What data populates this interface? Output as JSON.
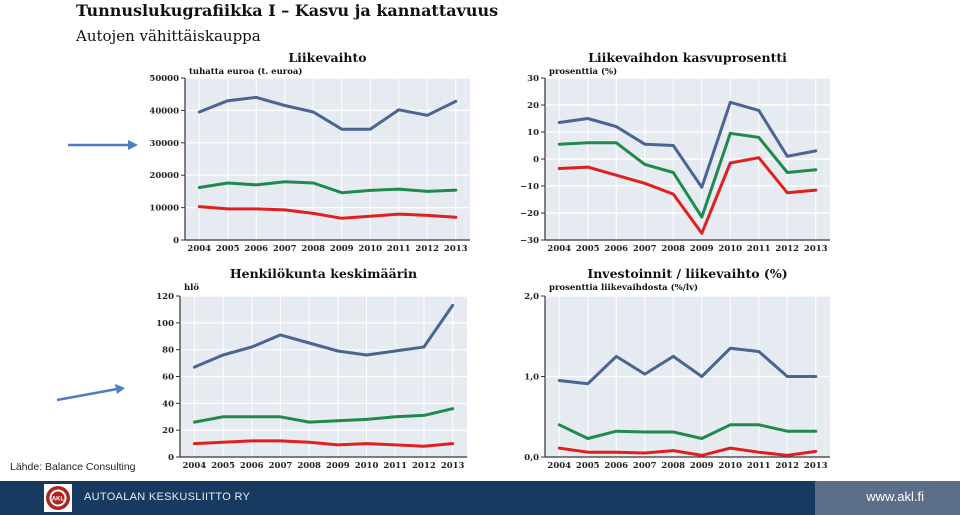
{
  "slide": {
    "title": "Tunnuslukugrafiikka I – Kasvu ja kannattavuus",
    "subtitle": "Autojen vähittäiskauppa",
    "source": "Lähde: Balance Consulting"
  },
  "footer": {
    "org_name": "AUTOALAN KESKUSLIITTO RY",
    "logo_text": "AKL",
    "website": "www.akl.fi"
  },
  "colors": {
    "blue": "#4a6591",
    "green": "#1f8a4c",
    "red": "#e0201f",
    "plot_bg": "#e6ebf1",
    "grid": "#ffffff",
    "arrow": "#4f7cc4"
  },
  "chart_data": [
    {
      "type": "line",
      "title": "Liikevaihto",
      "unit_label": "tuhatta euroa (t. euroa)",
      "x": [
        "2004",
        "2005",
        "2006",
        "2007",
        "2008",
        "2009",
        "2010",
        "2011",
        "2012",
        "2013"
      ],
      "ylim": [
        0,
        50000
      ],
      "yticks": [
        0,
        10000,
        20000,
        30000,
        40000,
        50000
      ],
      "ytick_labels": [
        "0",
        "10000",
        "20000",
        "30000",
        "40000",
        "50000"
      ],
      "grid": true,
      "series": [
        {
          "color": "blue",
          "values": [
            39500,
            43000,
            44000,
            41500,
            39500,
            34200,
            34200,
            40200,
            38500,
            42800
          ]
        },
        {
          "color": "green",
          "values": [
            16200,
            17600,
            17000,
            18000,
            17600,
            14600,
            15300,
            15700,
            15000,
            15400
          ]
        },
        {
          "color": "red",
          "values": [
            10300,
            9600,
            9600,
            9300,
            8200,
            6700,
            7300,
            8000,
            7600,
            7000
          ]
        }
      ]
    },
    {
      "type": "line",
      "title": "Liikevaihdon kasvuprosentti",
      "unit_label": "prosenttia (%)",
      "x": [
        "2004",
        "2005",
        "2006",
        "2007",
        "2008",
        "2009",
        "2010",
        "2011",
        "2012",
        "2013"
      ],
      "ylim": [
        -30,
        30
      ],
      "yticks": [
        -30,
        -20,
        -10,
        0,
        10,
        20,
        30
      ],
      "ytick_labels": [
        "−30",
        "−20",
        "−10",
        "0",
        "10",
        "20",
        "30"
      ],
      "grid": true,
      "series": [
        {
          "color": "blue",
          "values": [
            13.5,
            15,
            12,
            5.5,
            5,
            -10.5,
            21,
            18,
            1,
            3
          ]
        },
        {
          "color": "green",
          "values": [
            5.5,
            6,
            6,
            -2,
            -5,
            -21.5,
            9.5,
            8,
            -5,
            -4
          ]
        },
        {
          "color": "red",
          "values": [
            -3.5,
            -3,
            -6,
            -9,
            -13,
            -27.5,
            -1.5,
            0.5,
            -12.5,
            -11.5
          ]
        }
      ]
    },
    {
      "type": "line",
      "title": "Henkilökunta keskimäärin",
      "unit_label": "hlö",
      "x": [
        "2004",
        "2005",
        "2006",
        "2007",
        "2008",
        "2009",
        "2010",
        "2011",
        "2012",
        "2013"
      ],
      "ylim": [
        0,
        120
      ],
      "yticks": [
        0,
        20,
        40,
        60,
        80,
        100,
        120
      ],
      "ytick_labels": [
        "0",
        "20",
        "40",
        "60",
        "80",
        "100",
        "120"
      ],
      "grid": true,
      "series": [
        {
          "color": "blue",
          "values": [
            67,
            76,
            82,
            91,
            85,
            79,
            76,
            79,
            82,
            113
          ]
        },
        {
          "color": "green",
          "values": [
            26,
            30,
            30,
            30,
            26,
            27,
            28,
            30,
            31,
            36
          ]
        },
        {
          "color": "red",
          "values": [
            10,
            11,
            12,
            12,
            11,
            9,
            10,
            9,
            8,
            10
          ]
        }
      ]
    },
    {
      "type": "line",
      "title": "Investoinnit / liikevaihto (%)",
      "unit_label": "prosenttia liikevaihdosta (%/lv)",
      "x": [
        "2004",
        "2005",
        "2006",
        "2007",
        "2008",
        "2009",
        "2010",
        "2011",
        "2012",
        "2013"
      ],
      "ylim": [
        0,
        2
      ],
      "yticks": [
        0,
        1,
        2
      ],
      "ytick_labels": [
        "0,0",
        "1,0",
        "2,0"
      ],
      "grid": true,
      "series": [
        {
          "color": "blue",
          "values": [
            0.95,
            0.91,
            1.25,
            1.03,
            1.25,
            1.0,
            1.35,
            1.31,
            1.0,
            1.0
          ]
        },
        {
          "color": "green",
          "values": [
            0.4,
            0.23,
            0.32,
            0.31,
            0.31,
            0.23,
            0.4,
            0.4,
            0.32,
            0.32
          ]
        },
        {
          "color": "red",
          "values": [
            0.11,
            0.06,
            0.06,
            0.05,
            0.08,
            0.02,
            0.11,
            0.06,
            0.02,
            0.07
          ]
        }
      ]
    }
  ]
}
